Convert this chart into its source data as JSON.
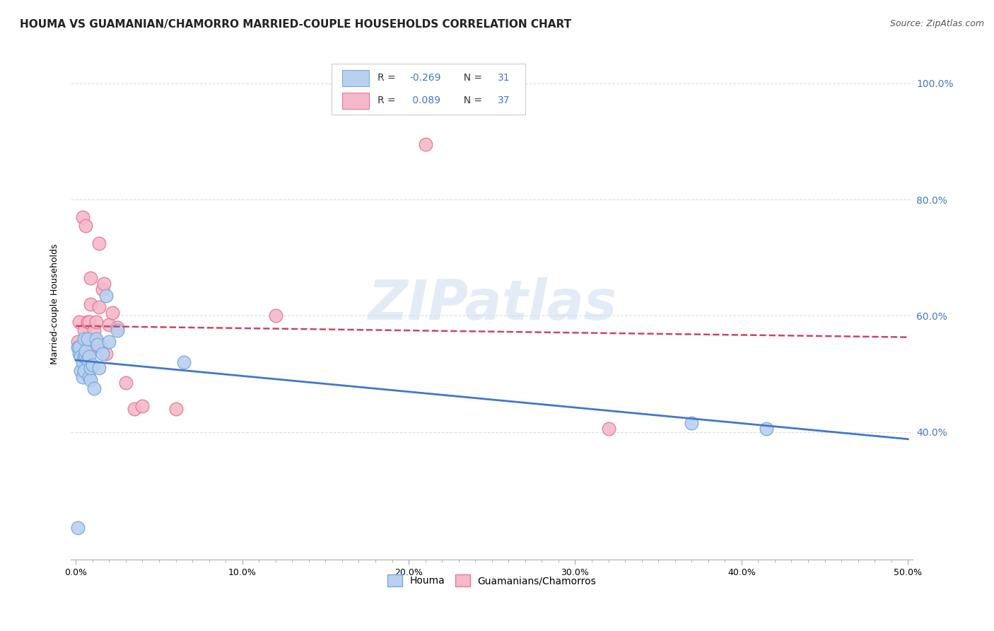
{
  "title": "HOUMA VS GUAMANIAN/CHAMORRO MARRIED-COUPLE HOUSEHOLDS CORRELATION CHART",
  "source": "Source: ZipAtlas.com",
  "ylabel": "Married-couple Households",
  "x_tick_labels": [
    "0.0%",
    "",
    "",
    "",
    "",
    "",
    "",
    "",
    "",
    "",
    "10.0%",
    "",
    "",
    "",
    "",
    "",
    "",
    "",
    "",
    "",
    "20.0%",
    "",
    "",
    "",
    "",
    "",
    "",
    "",
    "",
    "",
    "30.0%",
    "",
    "",
    "",
    "",
    "",
    "",
    "",
    "",
    "",
    "40.0%",
    "",
    "",
    "",
    "",
    "",
    "",
    "",
    "",
    "",
    "50.0%"
  ],
  "x_ticks": [
    0.0,
    0.01,
    0.02,
    0.03,
    0.04,
    0.05,
    0.06,
    0.07,
    0.08,
    0.09,
    0.1,
    0.11,
    0.12,
    0.13,
    0.14,
    0.15,
    0.16,
    0.17,
    0.18,
    0.19,
    0.2,
    0.21,
    0.22,
    0.23,
    0.24,
    0.25,
    0.26,
    0.27,
    0.28,
    0.29,
    0.3,
    0.31,
    0.32,
    0.33,
    0.34,
    0.35,
    0.36,
    0.37,
    0.38,
    0.39,
    0.4,
    0.41,
    0.42,
    0.43,
    0.44,
    0.45,
    0.46,
    0.47,
    0.48,
    0.49,
    0.5
  ],
  "x_minor_ticks": [
    0.0,
    0.1,
    0.2,
    0.3,
    0.4,
    0.5
  ],
  "y_tick_labels_right": [
    "40.0%",
    "60.0%",
    "80.0%",
    "100.0%"
  ],
  "y_ticks_right": [
    0.4,
    0.6,
    0.8,
    1.0
  ],
  "xlim": [
    -0.003,
    0.503
  ],
  "ylim": [
    0.18,
    1.06
  ],
  "houma_scatter_x": [
    0.001,
    0.002,
    0.002,
    0.003,
    0.003,
    0.004,
    0.004,
    0.005,
    0.005,
    0.005,
    0.006,
    0.006,
    0.007,
    0.007,
    0.008,
    0.008,
    0.009,
    0.009,
    0.01,
    0.011,
    0.012,
    0.013,
    0.014,
    0.016,
    0.018,
    0.02,
    0.025,
    0.065,
    0.37,
    0.415,
    0.001
  ],
  "houma_scatter_y": [
    0.545,
    0.535,
    0.545,
    0.505,
    0.53,
    0.495,
    0.52,
    0.505,
    0.53,
    0.56,
    0.53,
    0.54,
    0.56,
    0.525,
    0.495,
    0.53,
    0.49,
    0.51,
    0.515,
    0.475,
    0.56,
    0.55,
    0.51,
    0.535,
    0.635,
    0.555,
    0.575,
    0.52,
    0.415,
    0.405,
    0.235
  ],
  "guam_scatter_x": [
    0.001,
    0.002,
    0.002,
    0.003,
    0.004,
    0.004,
    0.005,
    0.005,
    0.006,
    0.006,
    0.007,
    0.007,
    0.007,
    0.008,
    0.008,
    0.009,
    0.009,
    0.01,
    0.011,
    0.012,
    0.013,
    0.014,
    0.014,
    0.015,
    0.016,
    0.017,
    0.018,
    0.02,
    0.022,
    0.025,
    0.03,
    0.035,
    0.04,
    0.06,
    0.12,
    0.21,
    0.32
  ],
  "guam_scatter_y": [
    0.555,
    0.545,
    0.59,
    0.535,
    0.545,
    0.77,
    0.535,
    0.575,
    0.54,
    0.755,
    0.54,
    0.545,
    0.59,
    0.54,
    0.59,
    0.62,
    0.665,
    0.55,
    0.575,
    0.59,
    0.555,
    0.615,
    0.725,
    0.545,
    0.645,
    0.655,
    0.535,
    0.585,
    0.605,
    0.58,
    0.485,
    0.44,
    0.445,
    0.44,
    0.6,
    0.895,
    0.405
  ],
  "houma_color": "#b8d0ee",
  "houma_edge_color": "#7aaadd",
  "guam_color": "#f5b8c8",
  "guam_edge_color": "#e87898",
  "scatter_size": 180,
  "trend_houma_color": "#4477cc",
  "trend_guam_color": "#cc4466",
  "background_color": "#ffffff",
  "grid_color": "#dddddd",
  "watermark": "ZIPatlas",
  "title_fontsize": 11,
  "axis_fontsize": 9,
  "source_fontsize": 9
}
